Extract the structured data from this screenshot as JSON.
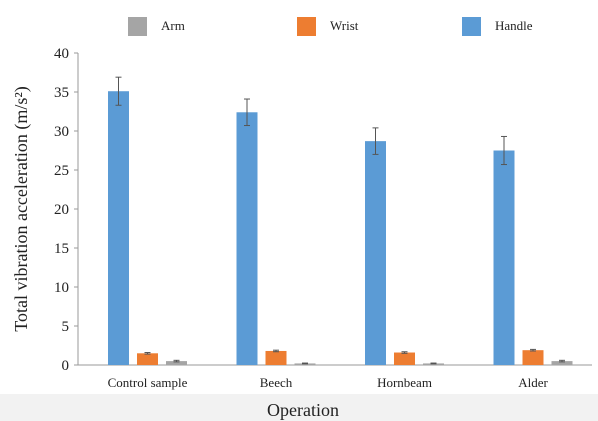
{
  "chart_data": {
    "type": "bar",
    "xlabel": "Operation",
    "ylabel": "Total vibration acceleration (m/s²)",
    "ylim": [
      0,
      40
    ],
    "yticks": [
      0,
      5,
      10,
      15,
      20,
      25,
      30,
      35,
      40
    ],
    "grid": false,
    "legend_position": "top",
    "categories": [
      "Control sample",
      "Beech",
      "Hornbeam",
      "Alder"
    ],
    "series": [
      {
        "name": "Handle",
        "color": "#5b9bd5",
        "values": [
          35.1,
          32.4,
          28.7,
          27.5
        ],
        "errors": [
          1.8,
          1.7,
          1.7,
          1.8
        ]
      },
      {
        "name": "Wrist",
        "color": "#ed7d31",
        "values": [
          1.5,
          1.8,
          1.6,
          1.9
        ],
        "errors": [
          0.1,
          0.1,
          0.1,
          0.1
        ]
      },
      {
        "name": "Arm",
        "color": "#a5a5a5",
        "values": [
          0.5,
          0.2,
          0.2,
          0.5
        ],
        "errors": [
          0.1,
          0.05,
          0.05,
          0.1
        ]
      }
    ],
    "legend": [
      "Arm",
      "Wrist",
      "Handle"
    ]
  }
}
